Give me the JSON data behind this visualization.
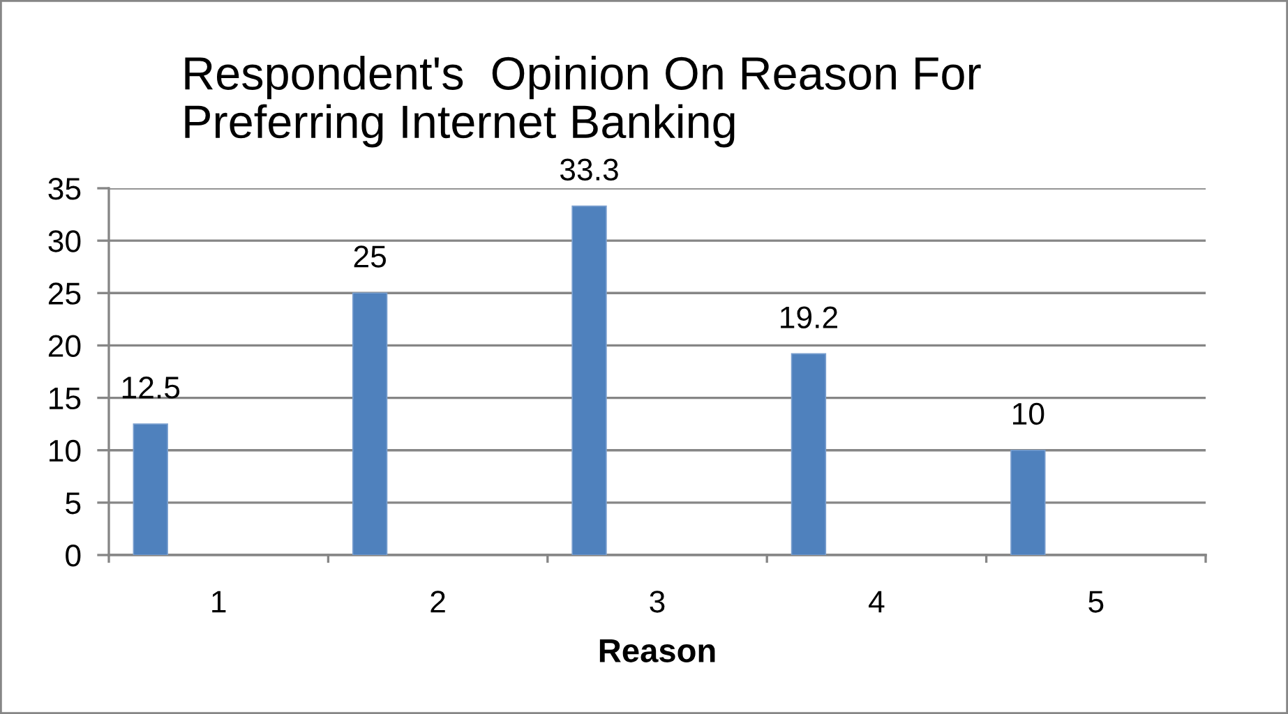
{
  "chart_data": {
    "type": "bar",
    "title": "Respondent's  Opinion On Reason For\nPreferring Internet Banking",
    "xlabel": "Reason",
    "categories": [
      "1",
      "2",
      "3",
      "4",
      "5"
    ],
    "values": [
      12.5,
      25,
      33.3,
      19.2,
      10
    ],
    "color": "#4f81bd",
    "ylim": [
      0,
      35
    ],
    "yticks": [
      0,
      5,
      10,
      15,
      20,
      25,
      30,
      35
    ],
    "grid": "y",
    "data_labels": true
  }
}
